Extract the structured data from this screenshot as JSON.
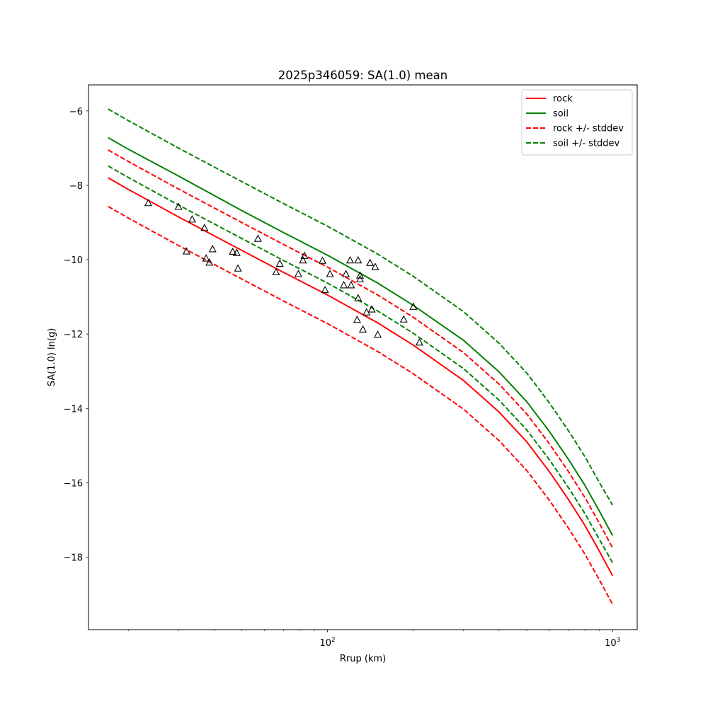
{
  "chart_data": {
    "type": "line",
    "title": "2025p346059: SA(1.0) mean",
    "xlabel": "Rrup (km)",
    "ylabel": "SA(1.0) ln(g)",
    "xscale": "log",
    "xlim": [
      14.5,
      1220
    ],
    "ylim": [
      -19.95,
      -5.3
    ],
    "x_major_ticks": [
      100,
      1000
    ],
    "x_major_tick_labels": [
      "10",
      "10"
    ],
    "x_major_tick_exponents": [
      "2",
      "3"
    ],
    "x_minor_ticks": [
      20,
      30,
      40,
      50,
      60,
      70,
      80,
      90,
      200,
      300,
      400,
      500,
      600,
      700,
      800,
      900
    ],
    "y_ticks": [
      -18,
      -16,
      -14,
      -12,
      -10,
      -8,
      -6
    ],
    "y_tick_labels": [
      "−18",
      "−16",
      "−14",
      "−12",
      "−10",
      "−8",
      "−6"
    ],
    "grid": false,
    "legend_position": "top-right",
    "series": [
      {
        "name": "rock",
        "color": "#ff0000",
        "dash": "solid",
        "x": [
          17,
          20,
          30,
          50,
          70,
          100,
          150,
          200,
          300,
          400,
          500,
          600,
          700,
          800,
          900,
          1000
        ],
        "y": [
          -7.8,
          -8.11,
          -8.85,
          -9.75,
          -10.34,
          -10.95,
          -11.7,
          -12.3,
          -13.25,
          -14.1,
          -14.9,
          -15.7,
          -16.45,
          -17.15,
          -17.85,
          -18.5
        ]
      },
      {
        "name": "soil",
        "color": "#008000",
        "dash": "solid",
        "x": [
          17,
          20,
          30,
          50,
          70,
          100,
          150,
          200,
          300,
          400,
          500,
          600,
          700,
          800,
          900,
          1000
        ],
        "y": [
          -6.72,
          -7.03,
          -7.75,
          -8.68,
          -9.27,
          -9.88,
          -10.63,
          -11.23,
          -12.17,
          -13.02,
          -13.82,
          -14.62,
          -15.37,
          -16.07,
          -16.77,
          -17.42
        ]
      },
      {
        "name": "rock +/- stddev",
        "color": "#ff0000",
        "dash": "dashed",
        "x": [
          17,
          20,
          30,
          50,
          70,
          100,
          150,
          200,
          300,
          400,
          500,
          600,
          700,
          800,
          900,
          1000
        ],
        "y": [
          -7.05,
          -7.36,
          -8.1,
          -9.0,
          -9.59,
          -10.2,
          -10.95,
          -11.55,
          -12.5,
          -13.35,
          -14.15,
          -14.95,
          -15.7,
          -16.4,
          -17.1,
          -17.75
        ]
      },
      {
        "name": "",
        "color": "#ff0000",
        "dash": "dashed",
        "x": [
          17,
          20,
          30,
          50,
          70,
          100,
          150,
          200,
          300,
          400,
          500,
          600,
          700,
          800,
          900,
          1000
        ],
        "y": [
          -8.57,
          -8.88,
          -9.62,
          -10.52,
          -11.11,
          -11.72,
          -12.47,
          -13.07,
          -14.02,
          -14.87,
          -15.67,
          -16.47,
          -17.22,
          -17.92,
          -18.62,
          -19.27
        ]
      },
      {
        "name": "soil +/- stddev",
        "color": "#008000",
        "dash": "dashed",
        "x": [
          17,
          20,
          30,
          50,
          70,
          100,
          150,
          200,
          300,
          400,
          500,
          600,
          700,
          800,
          900,
          1000
        ],
        "y": [
          -5.95,
          -6.26,
          -7.0,
          -7.9,
          -8.49,
          -9.1,
          -9.85,
          -10.45,
          -11.4,
          -12.25,
          -13.05,
          -13.85,
          -14.6,
          -15.3,
          -16.0,
          -16.6
        ]
      },
      {
        "name": "",
        "color": "#008000",
        "dash": "dashed",
        "x": [
          17,
          20,
          30,
          50,
          70,
          100,
          150,
          200,
          300,
          400,
          500,
          600,
          700,
          800,
          900,
          1000
        ],
        "y": [
          -7.48,
          -7.79,
          -8.53,
          -9.43,
          -10.02,
          -10.63,
          -11.38,
          -11.98,
          -12.93,
          -13.78,
          -14.58,
          -15.38,
          -16.13,
          -16.83,
          -17.53,
          -18.15
        ]
      }
    ],
    "observations": {
      "marker": "triangle",
      "color": "#000000",
      "x": [
        23.5,
        30,
        33.5,
        37,
        32,
        37.5,
        38.5,
        39.5,
        46.5,
        48,
        48.5,
        57,
        66,
        68,
        79,
        82,
        83,
        96,
        98,
        102,
        114,
        116,
        120,
        121,
        127,
        128,
        128,
        130,
        130,
        133,
        137,
        141,
        143,
        147,
        150,
        185,
        200,
        210
      ],
      "y": [
        -8.48,
        -8.58,
        -8.92,
        -9.15,
        -9.78,
        -9.97,
        -10.08,
        -9.72,
        -9.79,
        -9.82,
        -10.24,
        -9.44,
        -10.34,
        -10.11,
        -10.39,
        -10.02,
        -9.9,
        -10.03,
        -10.82,
        -10.39,
        -10.69,
        -10.39,
        -10.02,
        -10.69,
        -11.62,
        -11.04,
        -10.02,
        -10.53,
        -10.43,
        -11.88,
        -11.42,
        -10.09,
        -11.34,
        -10.2,
        -12.02,
        -11.61,
        -11.27,
        -12.23
      ]
    }
  }
}
